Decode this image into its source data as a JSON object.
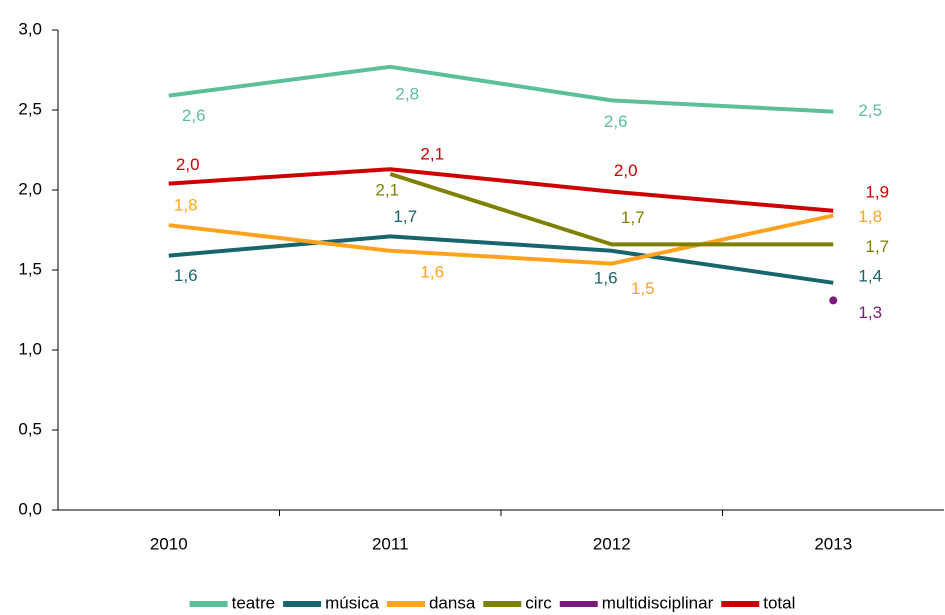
{
  "chart_data": {
    "type": "line",
    "categories": [
      "2010",
      "2011",
      "2012",
      "2013"
    ],
    "ylim": [
      0,
      3
    ],
    "yticks": [
      {
        "value": 0,
        "label": "0,0"
      },
      {
        "value": 0.5,
        "label": "0,5"
      },
      {
        "value": 1,
        "label": "1,0"
      },
      {
        "value": 1.5,
        "label": "1,5"
      },
      {
        "value": 2,
        "label": "2,0"
      },
      {
        "value": 2.5,
        "label": "2,5"
      },
      {
        "value": 3,
        "label": "3,0"
      }
    ],
    "grid": false,
    "legend": "bottom",
    "series": [
      {
        "name": "teatre",
        "color": "#5bbf98",
        "values": [
          2.59,
          2.77,
          2.56,
          2.49
        ],
        "value_labels": [
          "2,6",
          "2,8",
          "2,6",
          "2,5"
        ]
      },
      {
        "name": "música",
        "color": "#17666e",
        "values": [
          1.59,
          1.71,
          1.62,
          1.42
        ],
        "value_labels": [
          "1,6",
          "1,7",
          "1,6",
          "1,4"
        ]
      },
      {
        "name": "dansa",
        "color": "#ffa31f",
        "values": [
          1.78,
          1.62,
          1.54,
          1.84
        ],
        "value_labels": [
          "1,8",
          "1,6",
          "1,5",
          "1,8"
        ]
      },
      {
        "name": "circ",
        "color": "#808000",
        "values": [
          null,
          2.1,
          1.66,
          1.66
        ],
        "value_labels": [
          null,
          "2,1",
          "1,7",
          "1,7"
        ]
      },
      {
        "name": "multidisciplinar",
        "color": "#7a1a7a",
        "values": [
          null,
          null,
          null,
          1.31
        ],
        "value_labels": [
          null,
          null,
          null,
          "1,3"
        ]
      },
      {
        "name": "total",
        "color": "#cc0000",
        "values": [
          2.04,
          2.13,
          1.99,
          1.87
        ],
        "value_labels": [
          "2,0",
          "2,1",
          "2,0",
          "1,9"
        ]
      }
    ]
  }
}
